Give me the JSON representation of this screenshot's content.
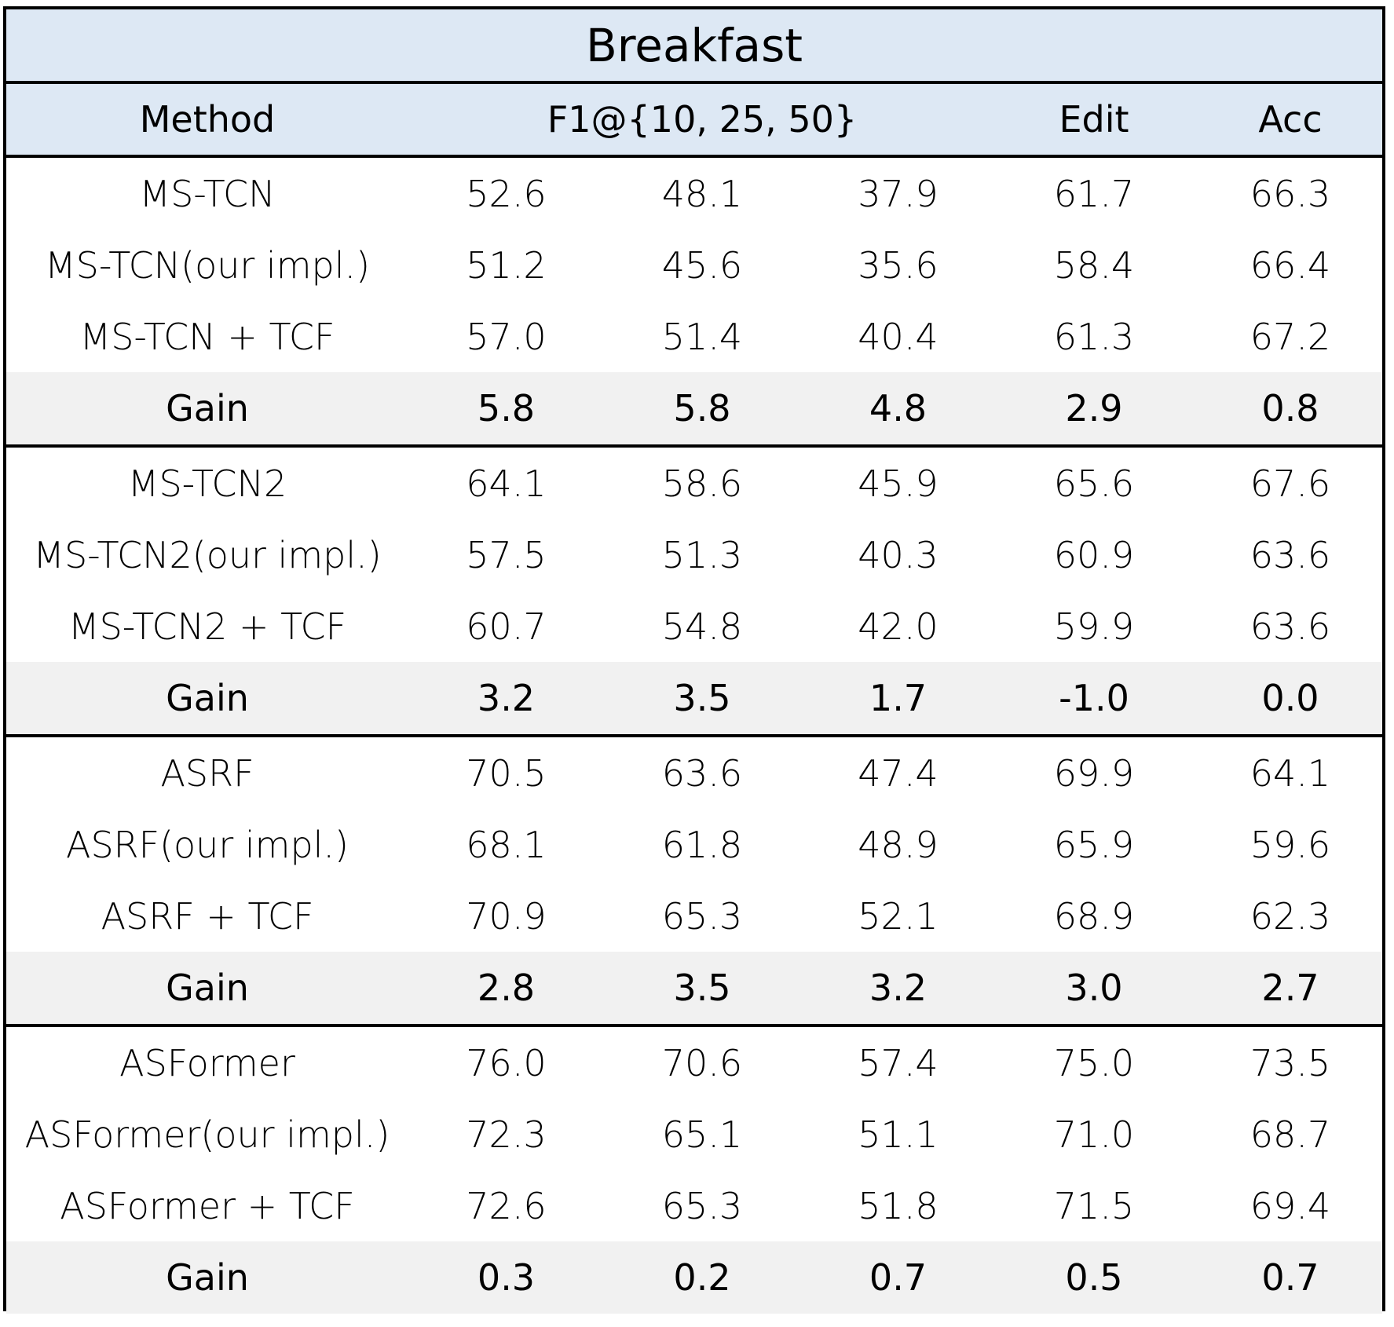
{
  "title": "Breakfast",
  "columns": {
    "method": "Method",
    "f1": "F1@{10, 25, 50}",
    "edit": "Edit",
    "acc": "Acc"
  },
  "groups": [
    {
      "rows": [
        {
          "method": "MS-TCN",
          "f1_10": "52.6",
          "f1_25": "48.1",
          "f1_50": "37.9",
          "edit": "61.7",
          "acc": "66.3"
        },
        {
          "method": "MS-TCN(our impl.)",
          "f1_10": "51.2",
          "f1_25": "45.6",
          "f1_50": "35.6",
          "edit": "58.4",
          "acc": "66.4"
        },
        {
          "method": "MS-TCN + TCF",
          "f1_10": "57.0",
          "f1_25": "51.4",
          "f1_50": "40.4",
          "edit": "61.3",
          "acc": "67.2"
        }
      ],
      "gain": {
        "method": "Gain",
        "f1_10": "5.8",
        "f1_25": "5.8",
        "f1_50": "4.8",
        "edit": "2.9",
        "acc": "0.8"
      }
    },
    {
      "rows": [
        {
          "method": "MS-TCN2",
          "f1_10": "64.1",
          "f1_25": "58.6",
          "f1_50": "45.9",
          "edit": "65.6",
          "acc": "67.6"
        },
        {
          "method": "MS-TCN2(our impl.)",
          "f1_10": "57.5",
          "f1_25": "51.3",
          "f1_50": "40.3",
          "edit": "60.9",
          "acc": "63.6"
        },
        {
          "method": "MS-TCN2 + TCF",
          "f1_10": "60.7",
          "f1_25": "54.8",
          "f1_50": "42.0",
          "edit": "59.9",
          "acc": "63.6"
        }
      ],
      "gain": {
        "method": "Gain",
        "f1_10": "3.2",
        "f1_25": "3.5",
        "f1_50": "1.7",
        "edit": "-1.0",
        "acc": "0.0"
      }
    },
    {
      "rows": [
        {
          "method": "ASRF",
          "f1_10": "70.5",
          "f1_25": "63.6",
          "f1_50": "47.4",
          "edit": "69.9",
          "acc": "64.1"
        },
        {
          "method": "ASRF(our impl.)",
          "f1_10": "68.1",
          "f1_25": "61.8",
          "f1_50": "48.9",
          "edit": "65.9",
          "acc": "59.6"
        },
        {
          "method": "ASRF + TCF",
          "f1_10": "70.9",
          "f1_25": "65.3",
          "f1_50": "52.1",
          "edit": "68.9",
          "acc": "62.3"
        }
      ],
      "gain": {
        "method": "Gain",
        "f1_10": "2.8",
        "f1_25": "3.5",
        "f1_50": "3.2",
        "edit": "3.0",
        "acc": "2.7"
      }
    },
    {
      "rows": [
        {
          "method": "ASFormer",
          "f1_10": "76.0",
          "f1_25": "70.6",
          "f1_50": "57.4",
          "edit": "75.0",
          "acc": "73.5"
        },
        {
          "method": "ASFormer(our impl.)",
          "f1_10": "72.3",
          "f1_25": "65.1",
          "f1_50": "51.1",
          "edit": "71.0",
          "acc": "68.7"
        },
        {
          "method": "ASFormer + TCF",
          "f1_10": "72.6",
          "f1_25": "65.3",
          "f1_50": "51.8",
          "edit": "71.5",
          "acc": "69.4"
        }
      ],
      "gain": {
        "method": "Gain",
        "f1_10": "0.3",
        "f1_25": "0.2",
        "f1_50": "0.7",
        "edit": "0.5",
        "acc": "0.7"
      }
    }
  ]
}
